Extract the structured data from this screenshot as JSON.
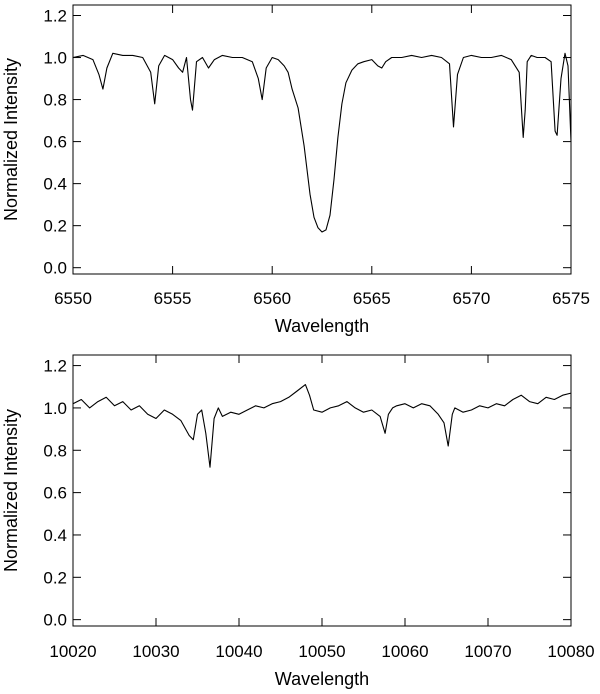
{
  "chart_data": [
    {
      "type": "line",
      "xlabel": "Wavelength",
      "ylabel": "Normalized Intensity",
      "xlim": [
        6550,
        6575
      ],
      "ylim": [
        -0.03,
        1.25
      ],
      "xticks": [
        6550,
        6555,
        6560,
        6565,
        6570,
        6575
      ],
      "xtick_labels": [
        "6550",
        "6555",
        "6560",
        "6565",
        "6570",
        "6575"
      ],
      "yticks": [
        0.0,
        0.2,
        0.4,
        0.6,
        0.8,
        1.0,
        1.2
      ],
      "ytick_labels": [
        "0.0",
        "0.2",
        "0.4",
        "0.6",
        "0.8",
        "1.0",
        "1.2"
      ],
      "grid": false,
      "series": [
        {
          "x": [
            6550.0,
            6550.5,
            6551.0,
            6551.3,
            6551.5,
            6551.7,
            6552.0,
            6552.5,
            6553.0,
            6553.5,
            6553.9,
            6554.1,
            6554.3,
            6554.6,
            6555.0,
            6555.3,
            6555.5,
            6555.7,
            6555.9,
            6556.0,
            6556.2,
            6556.5,
            6556.8,
            6557.1,
            6557.5,
            6558.0,
            6558.5,
            6559.0,
            6559.3,
            6559.5,
            6559.7,
            6560.0,
            6560.3,
            6560.6,
            6560.8,
            6561.0,
            6561.3,
            6561.6,
            6561.9,
            6562.1,
            6562.3,
            6562.5,
            6562.7,
            6562.9,
            6563.1,
            6563.3,
            6563.5,
            6563.7,
            6564.0,
            6564.3,
            6564.6,
            6565.0,
            6565.3,
            6565.5,
            6565.7,
            6566.0,
            6566.5,
            6567.0,
            6567.5,
            6568.0,
            6568.5,
            6568.9,
            6569.1,
            6569.3,
            6569.6,
            6570.0,
            6570.5,
            6571.0,
            6571.5,
            6572.0,
            6572.4,
            6572.6,
            6572.7,
            6572.8,
            6573.0,
            6573.3,
            6573.7,
            6574.0,
            6574.2,
            6574.3,
            6574.5,
            6574.7,
            6574.85,
            6575.0
          ],
          "y": [
            1.0,
            1.01,
            0.99,
            0.92,
            0.85,
            0.95,
            1.02,
            1.01,
            1.01,
            1.0,
            0.93,
            0.78,
            0.96,
            1.01,
            0.99,
            0.95,
            0.93,
            1.0,
            0.8,
            0.75,
            0.98,
            1.0,
            0.95,
            0.99,
            1.01,
            1.0,
            1.0,
            0.98,
            0.9,
            0.8,
            0.95,
            1.0,
            0.99,
            0.96,
            0.93,
            0.85,
            0.76,
            0.58,
            0.35,
            0.24,
            0.19,
            0.17,
            0.18,
            0.25,
            0.42,
            0.62,
            0.78,
            0.88,
            0.94,
            0.97,
            0.98,
            0.99,
            0.96,
            0.95,
            0.98,
            1.0,
            1.0,
            1.01,
            1.0,
            1.01,
            1.0,
            0.97,
            0.67,
            0.92,
            1.0,
            1.01,
            1.0,
            1.0,
            1.01,
            0.99,
            0.93,
            0.62,
            0.75,
            0.98,
            1.01,
            1.0,
            1.0,
            0.98,
            0.65,
            0.63,
            0.9,
            1.02,
            0.96,
            0.6
          ]
        }
      ]
    },
    {
      "type": "line",
      "xlabel": "Wavelength",
      "ylabel": "Normalized Intensity",
      "xlim": [
        10020,
        10080
      ],
      "ylim": [
        -0.03,
        1.25
      ],
      "xticks": [
        10020,
        10030,
        10040,
        10050,
        10060,
        10070,
        10080
      ],
      "xtick_labels": [
        "10020",
        "10030",
        "10040",
        "10050",
        "10060",
        "10070",
        "10080"
      ],
      "yticks": [
        0.0,
        0.2,
        0.4,
        0.6,
        0.8,
        1.0,
        1.2
      ],
      "ytick_labels": [
        "0.0",
        "0.2",
        "0.4",
        "0.6",
        "0.8",
        "1.0",
        "1.2"
      ],
      "grid": false,
      "series": [
        {
          "x": [
            10020.0,
            10021.0,
            10022.0,
            10023.0,
            10024.0,
            10025.0,
            10026.0,
            10027.0,
            10028.0,
            10029.0,
            10030.0,
            10031.0,
            10032.0,
            10033.0,
            10034.0,
            10034.5,
            10035.0,
            10035.5,
            10036.0,
            10036.5,
            10037.0,
            10037.5,
            10038.0,
            10039.0,
            10040.0,
            10041.0,
            10042.0,
            10043.0,
            10044.0,
            10045.0,
            10046.0,
            10047.0,
            10048.0,
            10048.5,
            10049.0,
            10050.0,
            10051.0,
            10052.0,
            10053.0,
            10054.0,
            10055.0,
            10056.0,
            10057.0,
            10057.6,
            10058.0,
            10058.5,
            10059.0,
            10060.0,
            10061.0,
            10062.0,
            10063.0,
            10064.0,
            10064.7,
            10065.2,
            10065.7,
            10066.0,
            10067.0,
            10068.0,
            10069.0,
            10070.0,
            10071.0,
            10072.0,
            10073.0,
            10074.0,
            10075.0,
            10076.0,
            10077.0,
            10078.0,
            10079.0,
            10080.0
          ],
          "y": [
            1.02,
            1.04,
            1.0,
            1.03,
            1.05,
            1.01,
            1.03,
            0.99,
            1.01,
            0.97,
            0.95,
            0.99,
            0.97,
            0.94,
            0.87,
            0.85,
            0.97,
            0.99,
            0.88,
            0.72,
            0.95,
            1.0,
            0.96,
            0.98,
            0.97,
            0.99,
            1.01,
            1.0,
            1.02,
            1.03,
            1.05,
            1.08,
            1.11,
            1.06,
            0.99,
            0.98,
            1.0,
            1.01,
            1.03,
            1.0,
            0.98,
            0.99,
            0.96,
            0.88,
            0.97,
            1.0,
            1.01,
            1.02,
            1.0,
            1.02,
            1.01,
            0.97,
            0.93,
            0.82,
            0.97,
            1.0,
            0.98,
            0.99,
            1.01,
            1.0,
            1.02,
            1.01,
            1.04,
            1.06,
            1.03,
            1.02,
            1.05,
            1.04,
            1.06,
            1.07
          ]
        }
      ]
    }
  ]
}
